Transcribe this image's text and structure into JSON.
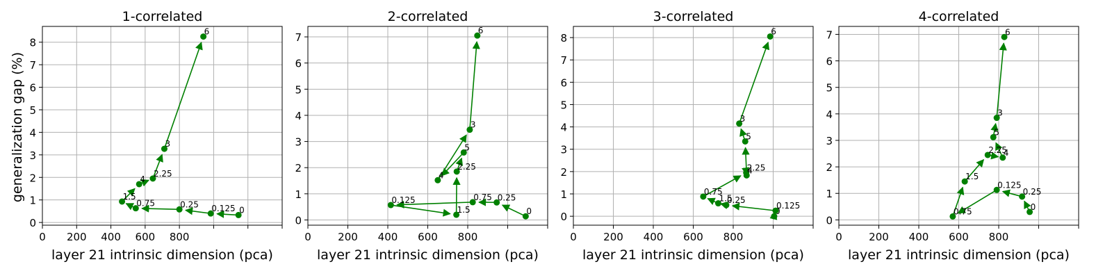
{
  "figure": {
    "ylabel": "generalization gap (%)",
    "xlabel": "layer 21 intrinsic dimension (pca)"
  },
  "colors": {
    "series": "#008000",
    "grid": "#b0b0b0",
    "axis": "#000000"
  },
  "chart_data": [
    {
      "type": "line",
      "title": "1-correlated",
      "xlabel": "layer 21 intrinsic dimension (pca)",
      "ylabel": "generalization gap (%)",
      "xlim": [
        0,
        1400
      ],
      "ylim": [
        -0.12,
        8.7
      ],
      "xticks": [
        0,
        200,
        400,
        600,
        800
      ],
      "yticks": [
        0,
        1,
        2,
        3,
        4,
        5,
        6,
        7,
        8
      ],
      "grid": true,
      "points": [
        {
          "label": "0",
          "x": 1145,
          "y": 0.33
        },
        {
          "label": "0.125",
          "x": 983,
          "y": 0.4
        },
        {
          "label": "0.25",
          "x": 800,
          "y": 0.58
        },
        {
          "label": "0.75",
          "x": 545,
          "y": 0.63
        },
        {
          "label": "1.5",
          "x": 465,
          "y": 0.93
        },
        {
          "label": "4",
          "x": 565,
          "y": 1.7
        },
        {
          "label": "2.25",
          "x": 645,
          "y": 1.95
        },
        {
          "label": "3",
          "x": 712,
          "y": 3.27
        },
        {
          "label": "6",
          "x": 940,
          "y": 8.25
        }
      ]
    },
    {
      "type": "line",
      "title": "2-correlated",
      "xlabel": "layer 21 intrinsic dimension (pca)",
      "ylabel": "",
      "xlim": [
        0,
        1200
      ],
      "ylim": [
        -0.2,
        7.4
      ],
      "xticks": [
        0,
        200,
        400,
        600,
        800
      ],
      "yticks": [
        0,
        1,
        2,
        3,
        4,
        5,
        6,
        7
      ],
      "grid": true,
      "points": [
        {
          "label": "0",
          "x": 1090,
          "y": 0.14
        },
        {
          "label": "0.25",
          "x": 945,
          "y": 0.67
        },
        {
          "label": "0.75",
          "x": 825,
          "y": 0.68
        },
        {
          "label": "0.125",
          "x": 415,
          "y": 0.57
        },
        {
          "label": "1.5",
          "x": 743,
          "y": 0.2
        },
        {
          "label": "2.25",
          "x": 745,
          "y": 1.85
        },
        {
          "label": "5",
          "x": 780,
          "y": 2.58
        },
        {
          "label": "4",
          "x": 650,
          "y": 1.52
        },
        {
          "label": "3",
          "x": 810,
          "y": 3.45
        },
        {
          "label": "6",
          "x": 848,
          "y": 7.05
        }
      ]
    },
    {
      "type": "line",
      "title": "3-correlated",
      "xlabel": "layer 21 intrinsic dimension (pca)",
      "ylabel": "",
      "xlim": [
        0,
        1200
      ],
      "ylim": [
        -0.4,
        8.5
      ],
      "xticks": [
        0,
        200,
        400,
        600,
        800
      ],
      "yticks": [
        0,
        1,
        2,
        3,
        4,
        5,
        6,
        7,
        8
      ],
      "grid": true,
      "points": [
        {
          "label": "0",
          "x": 1005,
          "y": 0.0
        },
        {
          "label": "0.125",
          "x": 1012,
          "y": 0.25
        },
        {
          "label": "0.25",
          "x": 765,
          "y": 0.5
        },
        {
          "label": "1.5",
          "x": 725,
          "y": 0.58
        },
        {
          "label": "0.75",
          "x": 650,
          "y": 0.88
        },
        {
          "label": "2.25",
          "x": 865,
          "y": 1.95
        },
        {
          "label": "4",
          "x": 867,
          "y": 1.83
        },
        {
          "label": "5",
          "x": 860,
          "y": 3.35
        },
        {
          "label": "3",
          "x": 830,
          "y": 4.15
        },
        {
          "label": "6",
          "x": 985,
          "y": 8.05
        }
      ]
    },
    {
      "type": "line",
      "title": "4-correlated",
      "xlabel": "layer 21 intrinsic dimension (pca)",
      "ylabel": "",
      "xlim": [
        0,
        1200
      ],
      "ylim": [
        -0.2,
        7.3
      ],
      "xticks": [
        0,
        200,
        400,
        600,
        800
      ],
      "yticks": [
        0,
        1,
        2,
        3,
        4,
        5,
        6,
        7
      ],
      "grid": true,
      "points": [
        {
          "label": "0",
          "x": 955,
          "y": 0.3
        },
        {
          "label": "0.25",
          "x": 917,
          "y": 0.88
        },
        {
          "label": "0.125",
          "x": 790,
          "y": 1.13
        },
        {
          "label": "0.75",
          "x": 570,
          "y": 0.13
        },
        {
          "label": "1.5",
          "x": 630,
          "y": 1.45
        },
        {
          "label": "2.25",
          "x": 745,
          "y": 2.45
        },
        {
          "label": "4",
          "x": 820,
          "y": 2.35
        },
        {
          "label": "5",
          "x": 773,
          "y": 3.12
        },
        {
          "label": "3",
          "x": 790,
          "y": 3.85
        },
        {
          "label": "6",
          "x": 828,
          "y": 6.9
        }
      ]
    }
  ]
}
